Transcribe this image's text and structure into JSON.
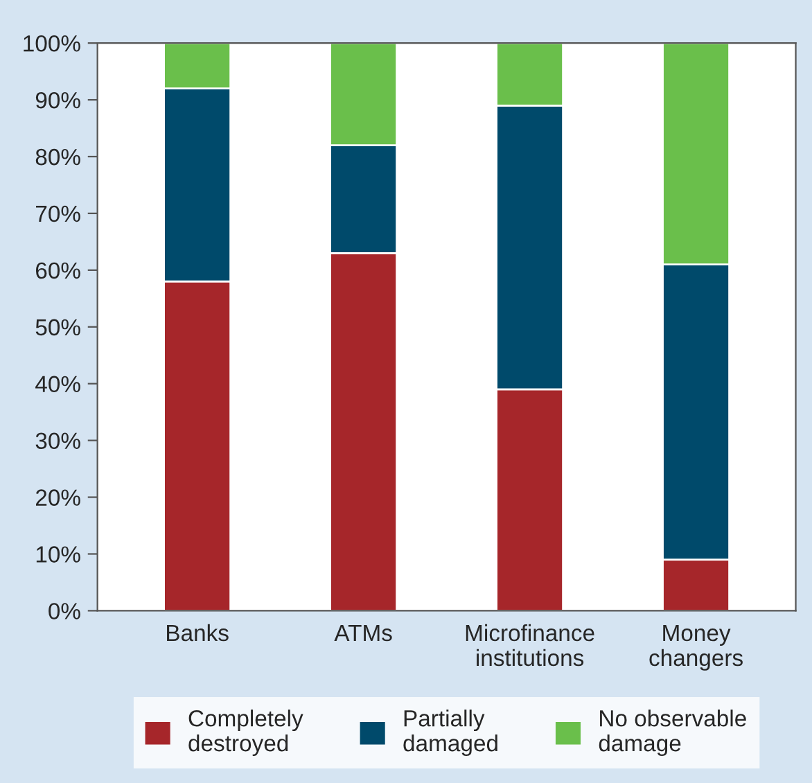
{
  "chart_data": {
    "type": "bar",
    "stacked": true,
    "categories": [
      "Banks",
      "ATMs",
      "Microfinance\ninstitutions",
      "Money\nchangers"
    ],
    "series": [
      {
        "name": "Completely\ndestroyed",
        "color": "#a6262a",
        "values": [
          58,
          63,
          39,
          9
        ]
      },
      {
        "name": "Partially\ndamaged",
        "color": "#004a6b",
        "values": [
          34,
          19,
          50,
          52
        ]
      },
      {
        "name": "No observable\ndamage",
        "color": "#6abf4b",
        "values": [
          8,
          18,
          11,
          39
        ]
      }
    ],
    "ylim": [
      0,
      100
    ],
    "yticks": [
      {
        "value": 0,
        "label": "0%"
      },
      {
        "value": 10,
        "label": "10%"
      },
      {
        "value": 20,
        "label": "20%"
      },
      {
        "value": 30,
        "label": "30%"
      },
      {
        "value": 40,
        "label": "40%"
      },
      {
        "value": 50,
        "label": "50%"
      },
      {
        "value": 60,
        "label": "60%"
      },
      {
        "value": 70,
        "label": "70%"
      },
      {
        "value": 80,
        "label": "80%"
      },
      {
        "value": 90,
        "label": "90%"
      },
      {
        "value": 100,
        "label": "100%"
      }
    ],
    "grid": false,
    "legend": "bottom"
  }
}
